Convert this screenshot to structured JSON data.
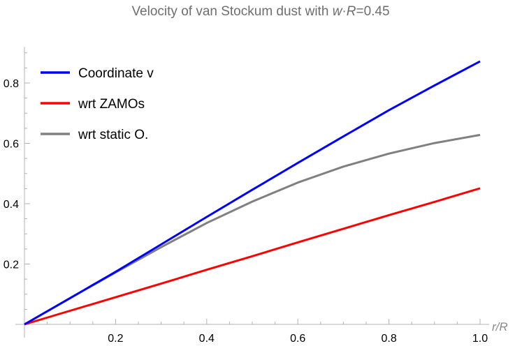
{
  "chart_data": {
    "type": "line",
    "title_prefix": "Velocity of van Stockum dust with ",
    "title_w": "w",
    "title_dot": "·",
    "title_R": "R",
    "title_suffix": "=0.45",
    "xlabel": "r/R",
    "ylabel": "",
    "xlim": [
      0,
      1.0
    ],
    "ylim": [
      0,
      0.92
    ],
    "xticks": [
      0.2,
      0.4,
      0.6,
      0.8,
      1.0
    ],
    "xtick_labels": [
      "0.2",
      "0.4",
      "0.6",
      "0.8",
      "1.0"
    ],
    "yticks": [
      0.2,
      0.4,
      0.6,
      0.8
    ],
    "ytick_labels": [
      "0.2",
      "0.4",
      "0.6",
      "0.8"
    ],
    "minor_tick_step": 0.05,
    "grid": false,
    "legend_placement": "top-left",
    "x": [
      0,
      0.1,
      0.2,
      0.3,
      0.4,
      0.5,
      0.6,
      0.7,
      0.8,
      0.9,
      1.0
    ],
    "series": [
      {
        "name": "Coordinate v",
        "color": "#0000ff",
        "values": [
          0,
          0.087,
          0.174,
          0.265,
          0.356,
          0.446,
          0.535,
          0.623,
          0.71,
          0.792,
          0.872
        ]
      },
      {
        "name": "wrt ZAMOs",
        "color": "#ff0000",
        "values": [
          0,
          0.045,
          0.09,
          0.135,
          0.181,
          0.226,
          0.272,
          0.317,
          0.362,
          0.406,
          0.451
        ]
      },
      {
        "name": "wrt static O.",
        "color": "#808080",
        "values": [
          0,
          0.087,
          0.172,
          0.256,
          0.336,
          0.407,
          0.47,
          0.523,
          0.566,
          0.601,
          0.628
        ]
      }
    ]
  }
}
